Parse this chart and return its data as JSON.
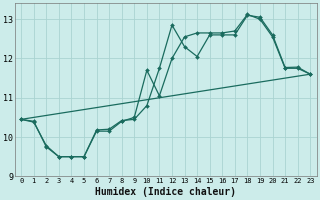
{
  "xlabel": "Humidex (Indice chaleur)",
  "background_color": "#ccecea",
  "grid_color": "#aad4d1",
  "line_color": "#1a6b5e",
  "xlim": [
    -0.5,
    23.5
  ],
  "ylim": [
    9.0,
    13.4
  ],
  "yticks": [
    9,
    10,
    11,
    12,
    13
  ],
  "xticks": [
    0,
    1,
    2,
    3,
    4,
    5,
    6,
    7,
    8,
    9,
    10,
    11,
    12,
    13,
    14,
    15,
    16,
    17,
    18,
    19,
    20,
    21,
    22,
    23
  ],
  "line1_x": [
    0,
    1,
    2,
    3,
    4,
    5,
    6,
    7,
    8,
    9,
    10,
    11,
    12,
    13,
    14,
    15,
    16,
    17,
    18,
    19,
    20,
    21,
    22,
    23
  ],
  "line1_y": [
    10.45,
    10.4,
    9.75,
    9.5,
    9.5,
    9.5,
    10.15,
    10.15,
    10.4,
    10.5,
    11.7,
    11.05,
    12.0,
    12.55,
    12.65,
    12.65,
    12.65,
    12.7,
    13.12,
    13.0,
    12.55,
    11.75,
    11.75,
    11.6
  ],
  "line2_x": [
    0,
    1,
    2,
    3,
    4,
    5,
    6,
    7,
    8,
    9,
    10,
    11,
    12,
    13,
    14,
    15,
    16,
    17,
    18,
    19,
    20,
    21,
    22,
    23
  ],
  "line2_y": [
    10.45,
    10.38,
    9.78,
    9.5,
    9.5,
    9.5,
    10.18,
    10.2,
    10.42,
    10.45,
    10.8,
    11.75,
    12.85,
    12.3,
    12.05,
    12.6,
    12.6,
    12.6,
    13.1,
    13.05,
    12.6,
    11.77,
    11.78,
    11.6
  ],
  "line3_x": [
    0,
    23
  ],
  "line3_y": [
    10.45,
    11.6
  ]
}
